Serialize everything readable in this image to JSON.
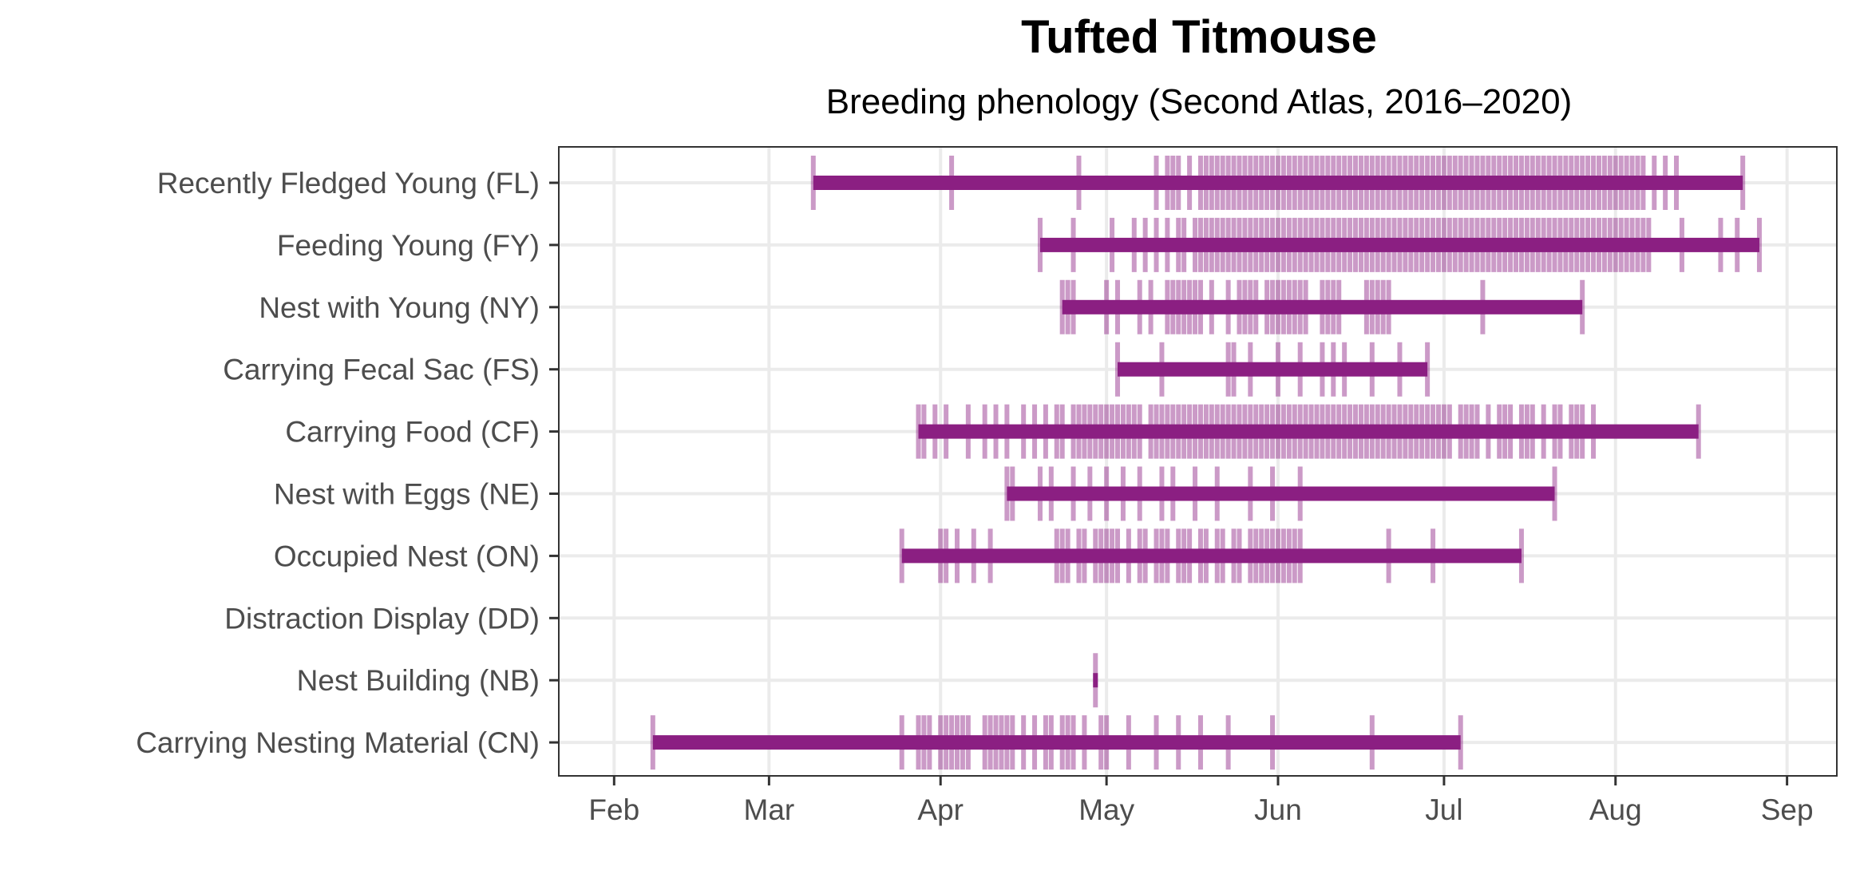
{
  "chart_data": {
    "type": "phenology",
    "title": "Tufted Titmouse",
    "subtitle": "Breeding phenology (Second Atlas, 2016–2020)",
    "xlabel": "",
    "ylabel": "",
    "x_unit": "day of year",
    "xlim": [
      22,
      253
    ],
    "x_ticks": [
      {
        "label": "Feb",
        "day": 32
      },
      {
        "label": "Mar",
        "day": 60
      },
      {
        "label": "Apr",
        "day": 91
      },
      {
        "label": "May",
        "day": 121
      },
      {
        "label": "Jun",
        "day": 152
      },
      {
        "label": "Jul",
        "day": 182
      },
      {
        "label": "Aug",
        "day": 213
      },
      {
        "label": "Sep",
        "day": 244
      }
    ],
    "grid": true,
    "bar_color": "#8b1f82",
    "tick_color": "#8b1f82",
    "categories": [
      {
        "label": "Recently Fledged Young (FL)",
        "range": [
          68,
          236
        ],
        "observations": [
          68,
          93,
          116,
          130,
          132,
          133,
          134,
          136,
          138,
          139,
          140,
          141,
          142,
          143,
          144,
          145,
          146,
          147,
          148,
          149,
          150,
          151,
          152,
          153,
          154,
          155,
          156,
          157,
          158,
          159,
          160,
          161,
          162,
          163,
          164,
          165,
          166,
          167,
          168,
          169,
          170,
          171,
          172,
          173,
          174,
          175,
          176,
          177,
          178,
          179,
          180,
          181,
          182,
          183,
          184,
          185,
          186,
          187,
          188,
          189,
          190,
          191,
          192,
          193,
          194,
          195,
          196,
          197,
          198,
          199,
          200,
          201,
          202,
          203,
          204,
          205,
          206,
          207,
          208,
          209,
          210,
          211,
          212,
          213,
          214,
          215,
          216,
          217,
          218,
          220,
          222,
          224,
          236
        ]
      },
      {
        "label": "Feeding Young (FY)",
        "range": [
          109,
          239
        ],
        "observations": [
          109,
          115,
          122,
          126,
          128,
          130,
          132,
          134,
          135,
          137,
          138,
          139,
          140,
          141,
          142,
          143,
          144,
          145,
          146,
          147,
          148,
          149,
          150,
          151,
          152,
          153,
          154,
          155,
          156,
          157,
          158,
          159,
          160,
          161,
          162,
          163,
          164,
          165,
          166,
          167,
          168,
          169,
          170,
          171,
          172,
          173,
          174,
          175,
          176,
          177,
          178,
          179,
          180,
          181,
          182,
          183,
          184,
          185,
          186,
          187,
          188,
          189,
          190,
          191,
          192,
          193,
          194,
          195,
          196,
          197,
          198,
          199,
          200,
          201,
          202,
          203,
          204,
          205,
          206,
          207,
          208,
          209,
          210,
          211,
          212,
          213,
          214,
          215,
          216,
          217,
          218,
          219,
          225,
          232,
          235,
          239
        ]
      },
      {
        "label": "Nest with Young (NY)",
        "range": [
          113,
          207
        ],
        "observations": [
          113,
          114,
          115,
          121,
          123,
          127,
          129,
          132,
          133,
          134,
          135,
          136,
          137,
          138,
          140,
          143,
          145,
          146,
          147,
          148,
          150,
          151,
          152,
          153,
          154,
          155,
          156,
          157,
          160,
          161,
          162,
          163,
          168,
          169,
          170,
          171,
          172,
          189,
          207
        ]
      },
      {
        "label": "Carrying Fecal Sac (FS)",
        "range": [
          123,
          179
        ],
        "observations": [
          123,
          131,
          143,
          144,
          147,
          152,
          156,
          160,
          162,
          164,
          169,
          174,
          179
        ]
      },
      {
        "label": "Carrying Food (CF)",
        "range": [
          87,
          228
        ],
        "observations": [
          87,
          88,
          90,
          92,
          96,
          99,
          101,
          103,
          106,
          108,
          110,
          112,
          113,
          115,
          116,
          117,
          118,
          119,
          120,
          121,
          122,
          123,
          124,
          125,
          126,
          127,
          129,
          130,
          131,
          132,
          133,
          134,
          135,
          136,
          137,
          138,
          139,
          140,
          141,
          142,
          143,
          144,
          145,
          146,
          147,
          148,
          149,
          150,
          151,
          152,
          153,
          154,
          155,
          156,
          157,
          158,
          159,
          160,
          161,
          162,
          163,
          164,
          165,
          166,
          167,
          168,
          169,
          170,
          171,
          172,
          173,
          174,
          175,
          176,
          177,
          178,
          179,
          180,
          181,
          182,
          183,
          185,
          186,
          187,
          188,
          190,
          192,
          193,
          194,
          196,
          197,
          198,
          200,
          202,
          203,
          205,
          206,
          207,
          209,
          228
        ]
      },
      {
        "label": "Nest with Eggs (NE)",
        "range": [
          103,
          202
        ],
        "observations": [
          103,
          104,
          109,
          111,
          115,
          118,
          121,
          124,
          127,
          131,
          133,
          137,
          141,
          147,
          151,
          156,
          202
        ]
      },
      {
        "label": "Occupied Nest (ON)",
        "range": [
          84,
          196
        ],
        "observations": [
          84,
          91,
          92,
          94,
          97,
          100,
          112,
          113,
          114,
          116,
          117,
          119,
          120,
          121,
          122,
          123,
          125,
          127,
          128,
          130,
          131,
          132,
          134,
          135,
          136,
          138,
          139,
          141,
          142,
          144,
          145,
          147,
          148,
          149,
          150,
          151,
          152,
          153,
          154,
          155,
          156,
          172,
          180,
          196
        ]
      },
      {
        "label": "Distraction Display (DD)",
        "range": null,
        "observations": []
      },
      {
        "label": "Nest Building (NB)",
        "range": [
          119,
          119
        ],
        "observations": [
          119
        ]
      },
      {
        "label": "Carrying Nesting Material (CN)",
        "range": [
          39,
          185
        ],
        "observations": [
          39,
          84,
          87,
          88,
          89,
          91,
          92,
          93,
          94,
          95,
          96,
          99,
          100,
          101,
          102,
          103,
          104,
          106,
          108,
          110,
          111,
          113,
          114,
          115,
          117,
          120,
          121,
          125,
          130,
          134,
          138,
          143,
          151,
          169,
          185
        ]
      }
    ]
  }
}
